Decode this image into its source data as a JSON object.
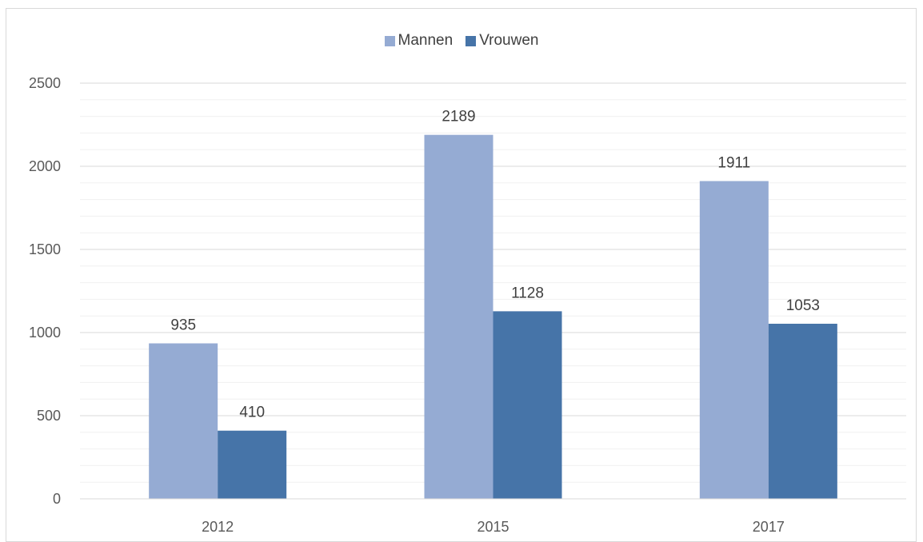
{
  "chart_data": {
    "type": "bar",
    "categories": [
      "2012",
      "2015",
      "2017"
    ],
    "series": [
      {
        "name": "Mannen",
        "values": [
          935,
          2189,
          1911
        ],
        "color": "#95abd3"
      },
      {
        "name": "Vrouwen",
        "values": [
          410,
          1128,
          1053
        ],
        "color": "#4674a8"
      }
    ],
    "yticks": [
      "0",
      "500",
      "1000",
      "1500",
      "2000",
      "2500"
    ],
    "ylim": [
      0,
      2500
    ],
    "grid": true,
    "legend_position": "top-center",
    "title": "",
    "xlabel": "",
    "ylabel": ""
  }
}
